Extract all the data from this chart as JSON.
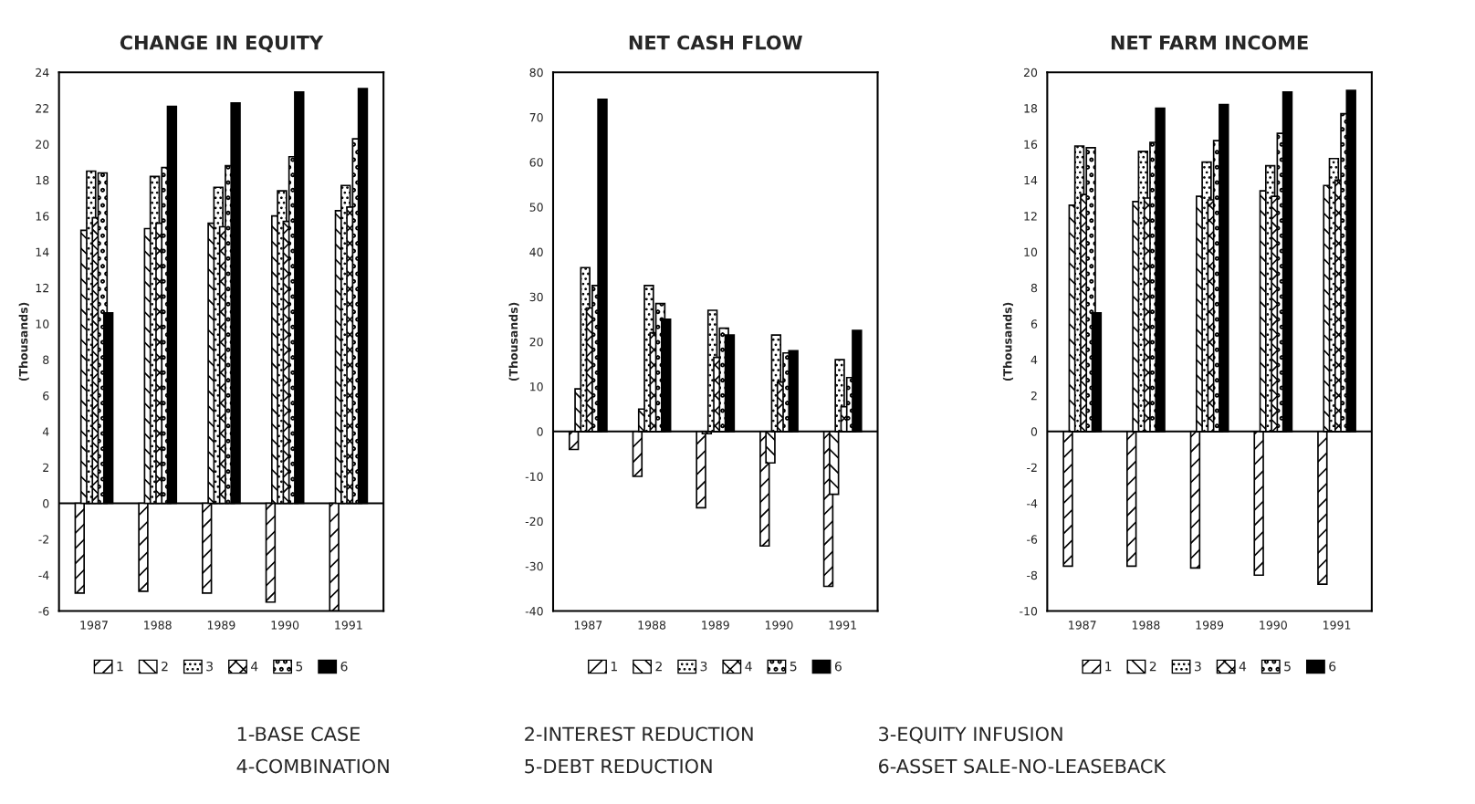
{
  "chart_data": [
    {
      "type": "bar",
      "title": "CHANGE IN EQUITY",
      "ylabel": "(Thousands)",
      "categories": [
        "1987",
        "1988",
        "1989",
        "1990",
        "1991"
      ],
      "ylim": [
        -6,
        24
      ],
      "yticks": [
        -6,
        -4,
        -2,
        0,
        2,
        4,
        6,
        8,
        10,
        12,
        14,
        16,
        18,
        20,
        22,
        24
      ],
      "grid": false,
      "legend": "bottom",
      "ref_lines": [
        {
          "axis": "y",
          "value": 0,
          "color": "#000000"
        }
      ],
      "series": [
        {
          "name": "1",
          "color": "#000000",
          "values": [
            -5.0,
            -4.9,
            -5.0,
            -5.5,
            -6.0
          ]
        },
        {
          "name": "2",
          "color": "#000000",
          "values": [
            15.2,
            15.3,
            15.6,
            16.0,
            16.3
          ]
        },
        {
          "name": "3",
          "color": "#000000",
          "values": [
            18.5,
            18.2,
            17.6,
            17.4,
            17.7
          ]
        },
        {
          "name": "4",
          "color": "#000000",
          "values": [
            15.9,
            15.6,
            15.4,
            15.7,
            16.5
          ]
        },
        {
          "name": "5",
          "color": "#000000",
          "values": [
            18.4,
            18.7,
            18.8,
            19.3,
            20.3
          ]
        },
        {
          "name": "6",
          "color": "#000000",
          "values": [
            10.6,
            22.1,
            22.3,
            22.9,
            23.1
          ]
        }
      ],
      "annotations": [
        "1-BASE CASE",
        "2-INTEREST REDUCTION",
        "3-EQUITY INFUSION",
        "4-COMBINATION",
        "5-DEBT REDUCTION",
        "6-ASSET SALE-NO-LEASEBACK"
      ]
    },
    {
      "type": "bar",
      "title": "NET CASH FLOW",
      "ylabel": "(Thousands)",
      "categories": [
        "1987",
        "1988",
        "1989",
        "1990",
        "1991"
      ],
      "ylim": [
        -40,
        80
      ],
      "yticks": [
        -40,
        -30,
        -20,
        -10,
        0,
        10,
        20,
        30,
        40,
        50,
        60,
        70,
        80
      ],
      "grid": false,
      "legend": "bottom",
      "ref_lines": [
        {
          "axis": "y",
          "value": 0,
          "color": "#000000"
        }
      ],
      "series": [
        {
          "name": "1",
          "color": "#000000",
          "values": [
            -4,
            -10,
            -17,
            -25.5,
            -34.5
          ]
        },
        {
          "name": "2",
          "color": "#000000",
          "values": [
            9.5,
            5,
            -0.5,
            -7,
            -14
          ]
        },
        {
          "name": "3",
          "color": "#000000",
          "values": [
            36.5,
            32.5,
            27,
            21.5,
            16
          ]
        },
        {
          "name": "4",
          "color": "#000000",
          "values": [
            27.5,
            22,
            16.5,
            11,
            5.5
          ]
        },
        {
          "name": "5",
          "color": "#000000",
          "values": [
            32.5,
            28.5,
            23,
            17.5,
            12
          ]
        },
        {
          "name": "6",
          "color": "#000000",
          "values": [
            74,
            25,
            21.5,
            18,
            22.5
          ]
        }
      ]
    },
    {
      "type": "bar",
      "title": "NET FARM INCOME",
      "ylabel": "(Thousands)",
      "categories": [
        "1987",
        "1988",
        "1989",
        "1990",
        "1991"
      ],
      "ylim": [
        -10,
        20
      ],
      "yticks": [
        -10,
        -8,
        -6,
        -4,
        -2,
        0,
        2,
        4,
        6,
        8,
        10,
        12,
        14,
        16,
        18,
        20
      ],
      "grid": false,
      "legend": "bottom",
      "ref_lines": [
        {
          "axis": "y",
          "value": 0,
          "color": "#000000"
        }
      ],
      "series": [
        {
          "name": "1",
          "color": "#000000",
          "values": [
            -7.5,
            -7.5,
            -7.6,
            -8.0,
            -8.5
          ]
        },
        {
          "name": "2",
          "color": "#000000",
          "values": [
            12.6,
            12.8,
            13.1,
            13.4,
            13.7
          ]
        },
        {
          "name": "3",
          "color": "#000000",
          "values": [
            15.9,
            15.6,
            15.0,
            14.8,
            15.2
          ]
        },
        {
          "name": "4",
          "color": "#000000",
          "values": [
            13.2,
            13.0,
            12.9,
            13.1,
            14.0
          ]
        },
        {
          "name": "5",
          "color": "#000000",
          "values": [
            15.8,
            16.1,
            16.2,
            16.6,
            17.7
          ]
        },
        {
          "name": "6",
          "color": "#000000",
          "values": [
            6.6,
            18.0,
            18.2,
            18.9,
            19.0
          ]
        }
      ]
    }
  ]
}
